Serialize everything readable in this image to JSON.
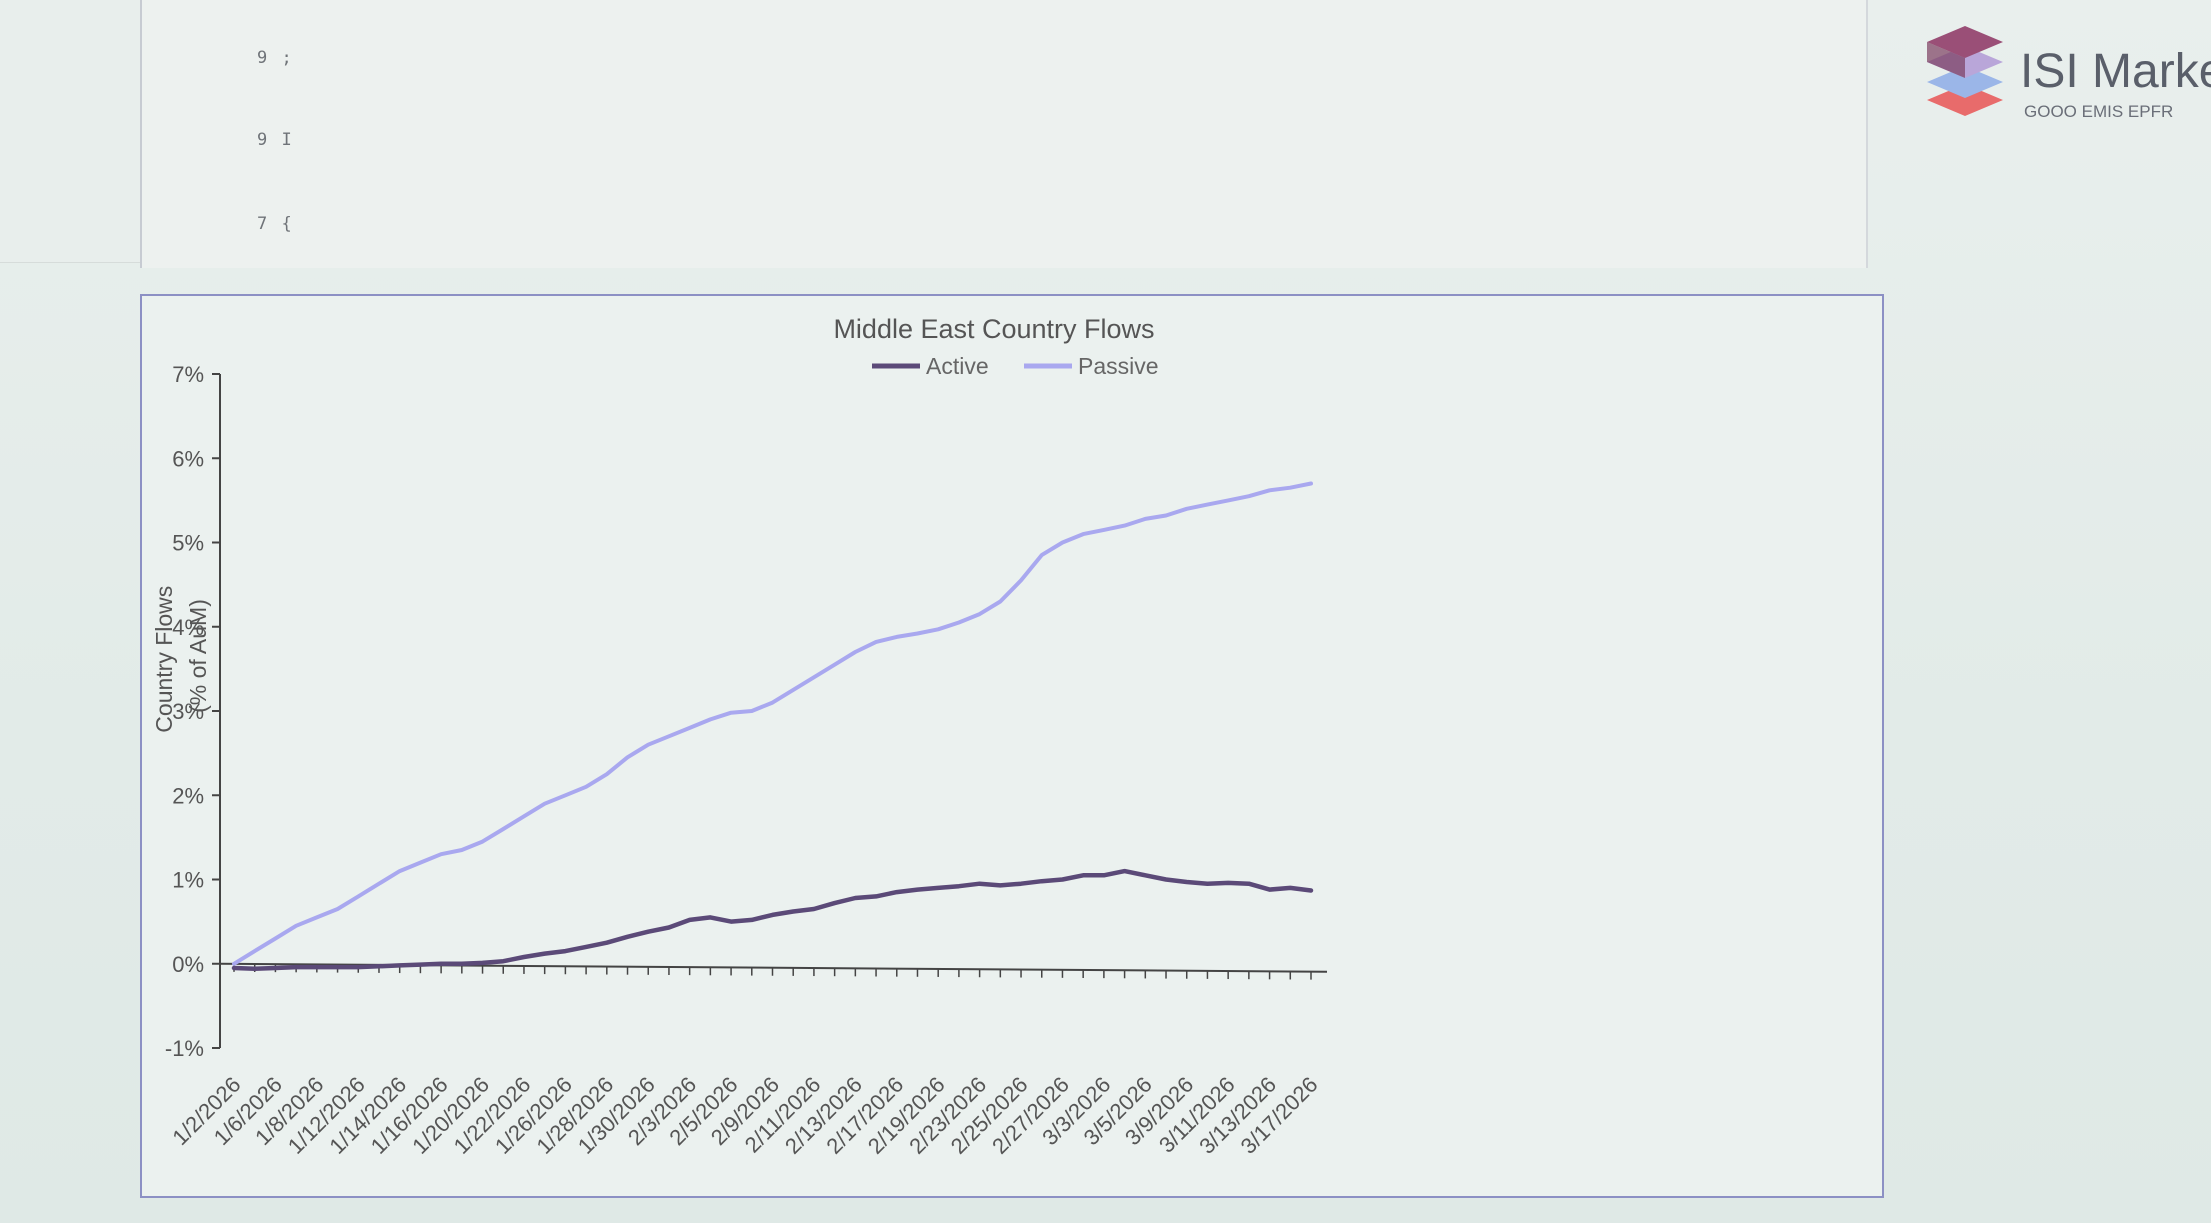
{
  "header": {
    "logo_text": "ISI Marke",
    "logo_sub": "GOOO EMIS EPFR",
    "top_panel_ticks": [
      "9 ;",
      "9 I",
      "7 {"
    ]
  },
  "colors": {
    "active": "#5b4a78",
    "passive": "#a9a8ef",
    "axis": "#444444",
    "frame": "#8c90c4"
  },
  "chart_data": {
    "type": "line",
    "title": "Middle East Country Flows",
    "xlabel": "",
    "ylabel": "Country Flows (% of AuM)",
    "ylim": [
      -1,
      7
    ],
    "yticks": [
      "-1%",
      "0%",
      "1%",
      "2%",
      "3%",
      "4%",
      "5%",
      "6%",
      "7%"
    ],
    "legend_position": "top-center",
    "grid": false,
    "x": [
      "1/2/2026",
      "1/5/2026",
      "1/6/2026",
      "1/7/2026",
      "1/8/2026",
      "1/9/2026",
      "1/12/2026",
      "1/13/2026",
      "1/14/2026",
      "1/15/2026",
      "1/16/2026",
      "1/19/2026",
      "1/20/2026",
      "1/21/2026",
      "1/22/2026",
      "1/23/2026",
      "1/26/2026",
      "1/27/2026",
      "1/28/2026",
      "1/29/2026",
      "1/30/2026",
      "2/2/2026",
      "2/3/2026",
      "2/4/2026",
      "2/5/2026",
      "2/6/2026",
      "2/9/2026",
      "2/10/2026",
      "2/11/2026",
      "2/12/2026",
      "2/13/2026",
      "2/16/2026",
      "2/17/2026",
      "2/18/2026",
      "2/19/2026",
      "2/20/2026",
      "2/23/2026",
      "2/24/2026",
      "2/25/2026",
      "2/26/2026",
      "2/27/2026",
      "3/2/2026",
      "3/3/2026",
      "3/4/2026",
      "3/5/2026",
      "3/6/2026",
      "3/9/2026",
      "3/10/2026",
      "3/11/2026",
      "3/12/2026",
      "3/13/2026",
      "3/16/2026",
      "3/17/2026"
    ],
    "x_tick_labels": [
      "1/2/2026",
      "1/6/2026",
      "1/8/2026",
      "1/12/2026",
      "1/14/2026",
      "1/16/2026",
      "1/20/2026",
      "1/22/2026",
      "1/26/2026",
      "1/28/2026",
      "1/30/2026",
      "2/3/2026",
      "2/5/2026",
      "2/9/2026",
      "2/11/2026",
      "2/13/2026",
      "2/17/2026",
      "2/19/2026",
      "2/23/2026",
      "2/25/2026",
      "2/27/2026",
      "3/3/2026",
      "3/5/2026",
      "3/9/2026",
      "3/11/2026",
      "3/13/2026",
      "3/17/2026"
    ],
    "series": [
      {
        "name": "Active",
        "values": [
          -0.05,
          -0.06,
          -0.05,
          -0.04,
          -0.04,
          -0.04,
          -0.04,
          -0.03,
          -0.02,
          -0.01,
          0.0,
          0.0,
          0.01,
          0.03,
          0.08,
          0.12,
          0.15,
          0.2,
          0.25,
          0.32,
          0.38,
          0.43,
          0.52,
          0.55,
          0.5,
          0.52,
          0.58,
          0.62,
          0.65,
          0.72,
          0.78,
          0.8,
          0.85,
          0.88,
          0.9,
          0.92,
          0.95,
          0.93,
          0.95,
          0.98,
          1.0,
          1.05,
          1.05,
          1.1,
          1.05,
          1.0,
          0.97,
          0.95,
          0.96,
          0.95,
          0.88,
          0.9,
          0.87
        ]
      },
      {
        "name": "Passive",
        "values": [
          0.0,
          0.15,
          0.3,
          0.45,
          0.55,
          0.65,
          0.8,
          0.95,
          1.1,
          1.2,
          1.3,
          1.35,
          1.45,
          1.6,
          1.75,
          1.9,
          2.0,
          2.1,
          2.25,
          2.45,
          2.6,
          2.7,
          2.8,
          2.9,
          2.98,
          3.0,
          3.1,
          3.25,
          3.4,
          3.55,
          3.7,
          3.82,
          3.88,
          3.92,
          3.97,
          4.05,
          4.15,
          4.3,
          4.55,
          4.85,
          5.0,
          5.1,
          5.15,
          5.2,
          5.28,
          5.32,
          5.4,
          5.45,
          5.5,
          5.55,
          5.62,
          5.65,
          5.7
        ]
      }
    ]
  }
}
